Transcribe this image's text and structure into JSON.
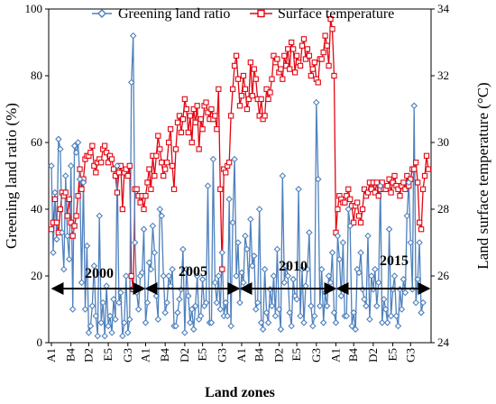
{
  "chart_data": {
    "type": "line",
    "xlabel": "Land zones",
    "ylabel_left": "Greening land ratio (%)",
    "ylabel_right": "Land surface temperature (°C)",
    "ylim_left": [
      0,
      100
    ],
    "ylim_right": [
      24,
      34
    ],
    "yticks_left": [
      "0",
      "20",
      "40",
      "60",
      "80",
      "100"
    ],
    "yticks_right": [
      "24",
      "26",
      "28",
      "30",
      "32",
      "34"
    ],
    "x_tick_labels": [
      "A1",
      "B4",
      "D2",
      "E5",
      "G3",
      "A1",
      "B4",
      "D2",
      "E5",
      "G3",
      "A1",
      "B4",
      "D2",
      "E5",
      "G3",
      "A1",
      "B4",
      "D2",
      "E5",
      "G3"
    ],
    "legend_position": "top",
    "period_labels": [
      "2000",
      "2005",
      "2010",
      "2015"
    ],
    "series": [
      {
        "name": "Greening land ratio",
        "axis": "left",
        "color": "#4F81BD",
        "marker": "diamond",
        "values": [
          [
            53,
            27,
            45,
            31,
            61,
            58,
            33,
            22,
            50,
            32,
            25,
            53,
            10,
            59,
            57,
            60,
            49,
            18,
            48,
            10,
            29,
            3,
            5,
            11,
            23,
            8,
            2,
            38,
            6,
            12,
            2,
            17,
            5,
            8,
            3,
            13,
            7,
            53,
            12,
            15,
            2,
            6,
            20,
            3,
            7,
            78,
            92,
            30,
            15,
            10,
            20,
            21,
            34,
            6,
            12,
            24,
            22,
            35,
            27,
            14,
            7,
            40,
            38,
            20,
            9,
            12,
            20,
            17,
            22,
            5,
            5,
            9,
            13,
            16,
            28,
            3,
            22,
            14,
            6,
            10,
            4,
            11,
            20,
            7,
            8,
            19,
            11,
            12,
            47,
            6,
            6,
            55,
            18,
            12,
            20,
            10,
            27,
            8,
            12,
            8,
            43,
            5,
            36,
            55,
            20,
            30,
            12,
            21,
            18,
            32,
            28,
            17,
            37,
            23,
            26,
            10,
            12,
            40,
            6,
            4,
            22,
            9,
            6,
            16,
            11,
            20,
            8,
            28,
            10,
            4,
            50,
            18,
            23,
            20,
            9,
            5,
            19,
            14,
            13,
            46,
            8,
            22,
            6,
            17,
            22,
            33,
            11,
            5,
            8,
            72,
            49,
            11,
            22,
            6,
            15,
            11,
            20,
            18,
            27,
            9,
            6,
            32,
            25,
            14,
            30,
            8,
            8,
            40,
            35,
            5,
            9,
            4,
            22,
            21,
            27,
            16,
            13,
            11,
            32,
            7,
            20,
            16,
            22,
            11,
            18,
            47,
            6,
            13,
            10,
            6,
            34,
            8,
            16,
            20,
            8,
            5,
            16,
            10,
            19,
            15,
            38,
            48,
            30,
            16,
            71,
            12,
            19,
            30,
            9,
            12
          ]
        ]
      },
      {
        "name": "Surface temperature",
        "axis": "right",
        "color": "#E30613",
        "marker": "square",
        "values": [
          [
            27.4,
            27.6,
            28.3,
            27.6,
            27.3,
            28.0,
            28.5,
            28.4,
            28.5,
            27.8,
            28.3,
            27.6,
            27.2,
            27.5,
            27.8,
            28.4,
            29.2,
            28.6,
            28.9,
            29.5,
            29.6,
            29.6,
            29.7,
            29.9,
            29.3,
            29.1,
            29.4,
            29.5,
            29.4,
            29.8,
            29.9,
            29.7,
            29.4,
            29.6,
            29.5,
            29.2,
            29.0,
            28.5,
            29.1,
            29.3,
            28.0,
            29.1,
            29.2,
            29.0,
            29.3,
            26.0,
            25.6,
            28.6,
            28.6,
            28.4,
            28.2,
            28.4,
            28.0,
            28.4,
            28.8,
            29.2,
            28.6,
            29.6,
            29.0,
            29.6,
            30.2,
            29.8,
            29.4,
            29.0,
            29.2,
            29.4,
            30.0,
            30.4,
            29.3,
            28.6,
            29.8,
            30.6,
            30.8,
            30.3,
            30.7,
            31.3,
            31.0,
            30.3,
            30.8,
            30.0,
            31.0,
            30.6,
            31.1,
            29.8,
            30.7,
            30.4,
            31.1,
            31.2,
            30.9,
            30.7,
            31.0,
            30.7,
            30.8,
            30.4,
            31.6,
            28.6,
            26.2,
            29.2,
            29.1,
            29.3,
            29.4,
            30.8,
            31.6,
            32.3,
            32.6,
            31.9,
            31.1,
            31.4,
            32.0,
            31.6,
            31.0,
            31.3,
            32.4,
            31.4,
            32.2,
            31.9,
            31.3,
            30.8,
            31.3,
            30.7,
            30.8,
            31.6,
            31.3,
            31.5,
            31.9,
            32.6,
            32.4,
            32.5,
            32.1,
            32.2,
            31.9,
            32.6,
            32.3,
            32.8,
            32.2,
            33.0,
            32.8,
            32.1,
            32.6,
            32.4,
            32.3,
            32.9,
            33.1,
            32.5,
            32.8,
            32.6,
            32.0,
            32.2,
            32.4,
            31.9,
            31.8,
            32.5,
            32.5,
            32.7,
            33.2,
            32.9,
            32.3,
            33.7,
            33.4,
            32.0,
            27.3,
            28.0,
            28.4,
            28.3,
            28.2,
            28.2,
            28.4,
            28.6,
            28.3,
            28.1,
            27.6,
            28.1,
            28.2,
            27.8,
            27.6,
            28.0,
            28.6,
            28.4,
            28.5,
            28.8,
            28.6,
            28.8,
            28.5,
            28.8,
            28.4,
            28.6,
            28.8,
            28.6,
            28.6,
            28.7,
            28.9,
            28.5,
            28.8,
            29.0,
            28.7,
            28.6,
            28.4,
            28.7,
            28.8,
            28.6,
            29.0,
            28.7,
            28.9,
            29.2,
            29.2,
            29.4,
            28.8,
            27.6,
            27.4,
            28.6,
            29.0,
            29.6,
            29.2
          ]
        ]
      }
    ]
  }
}
